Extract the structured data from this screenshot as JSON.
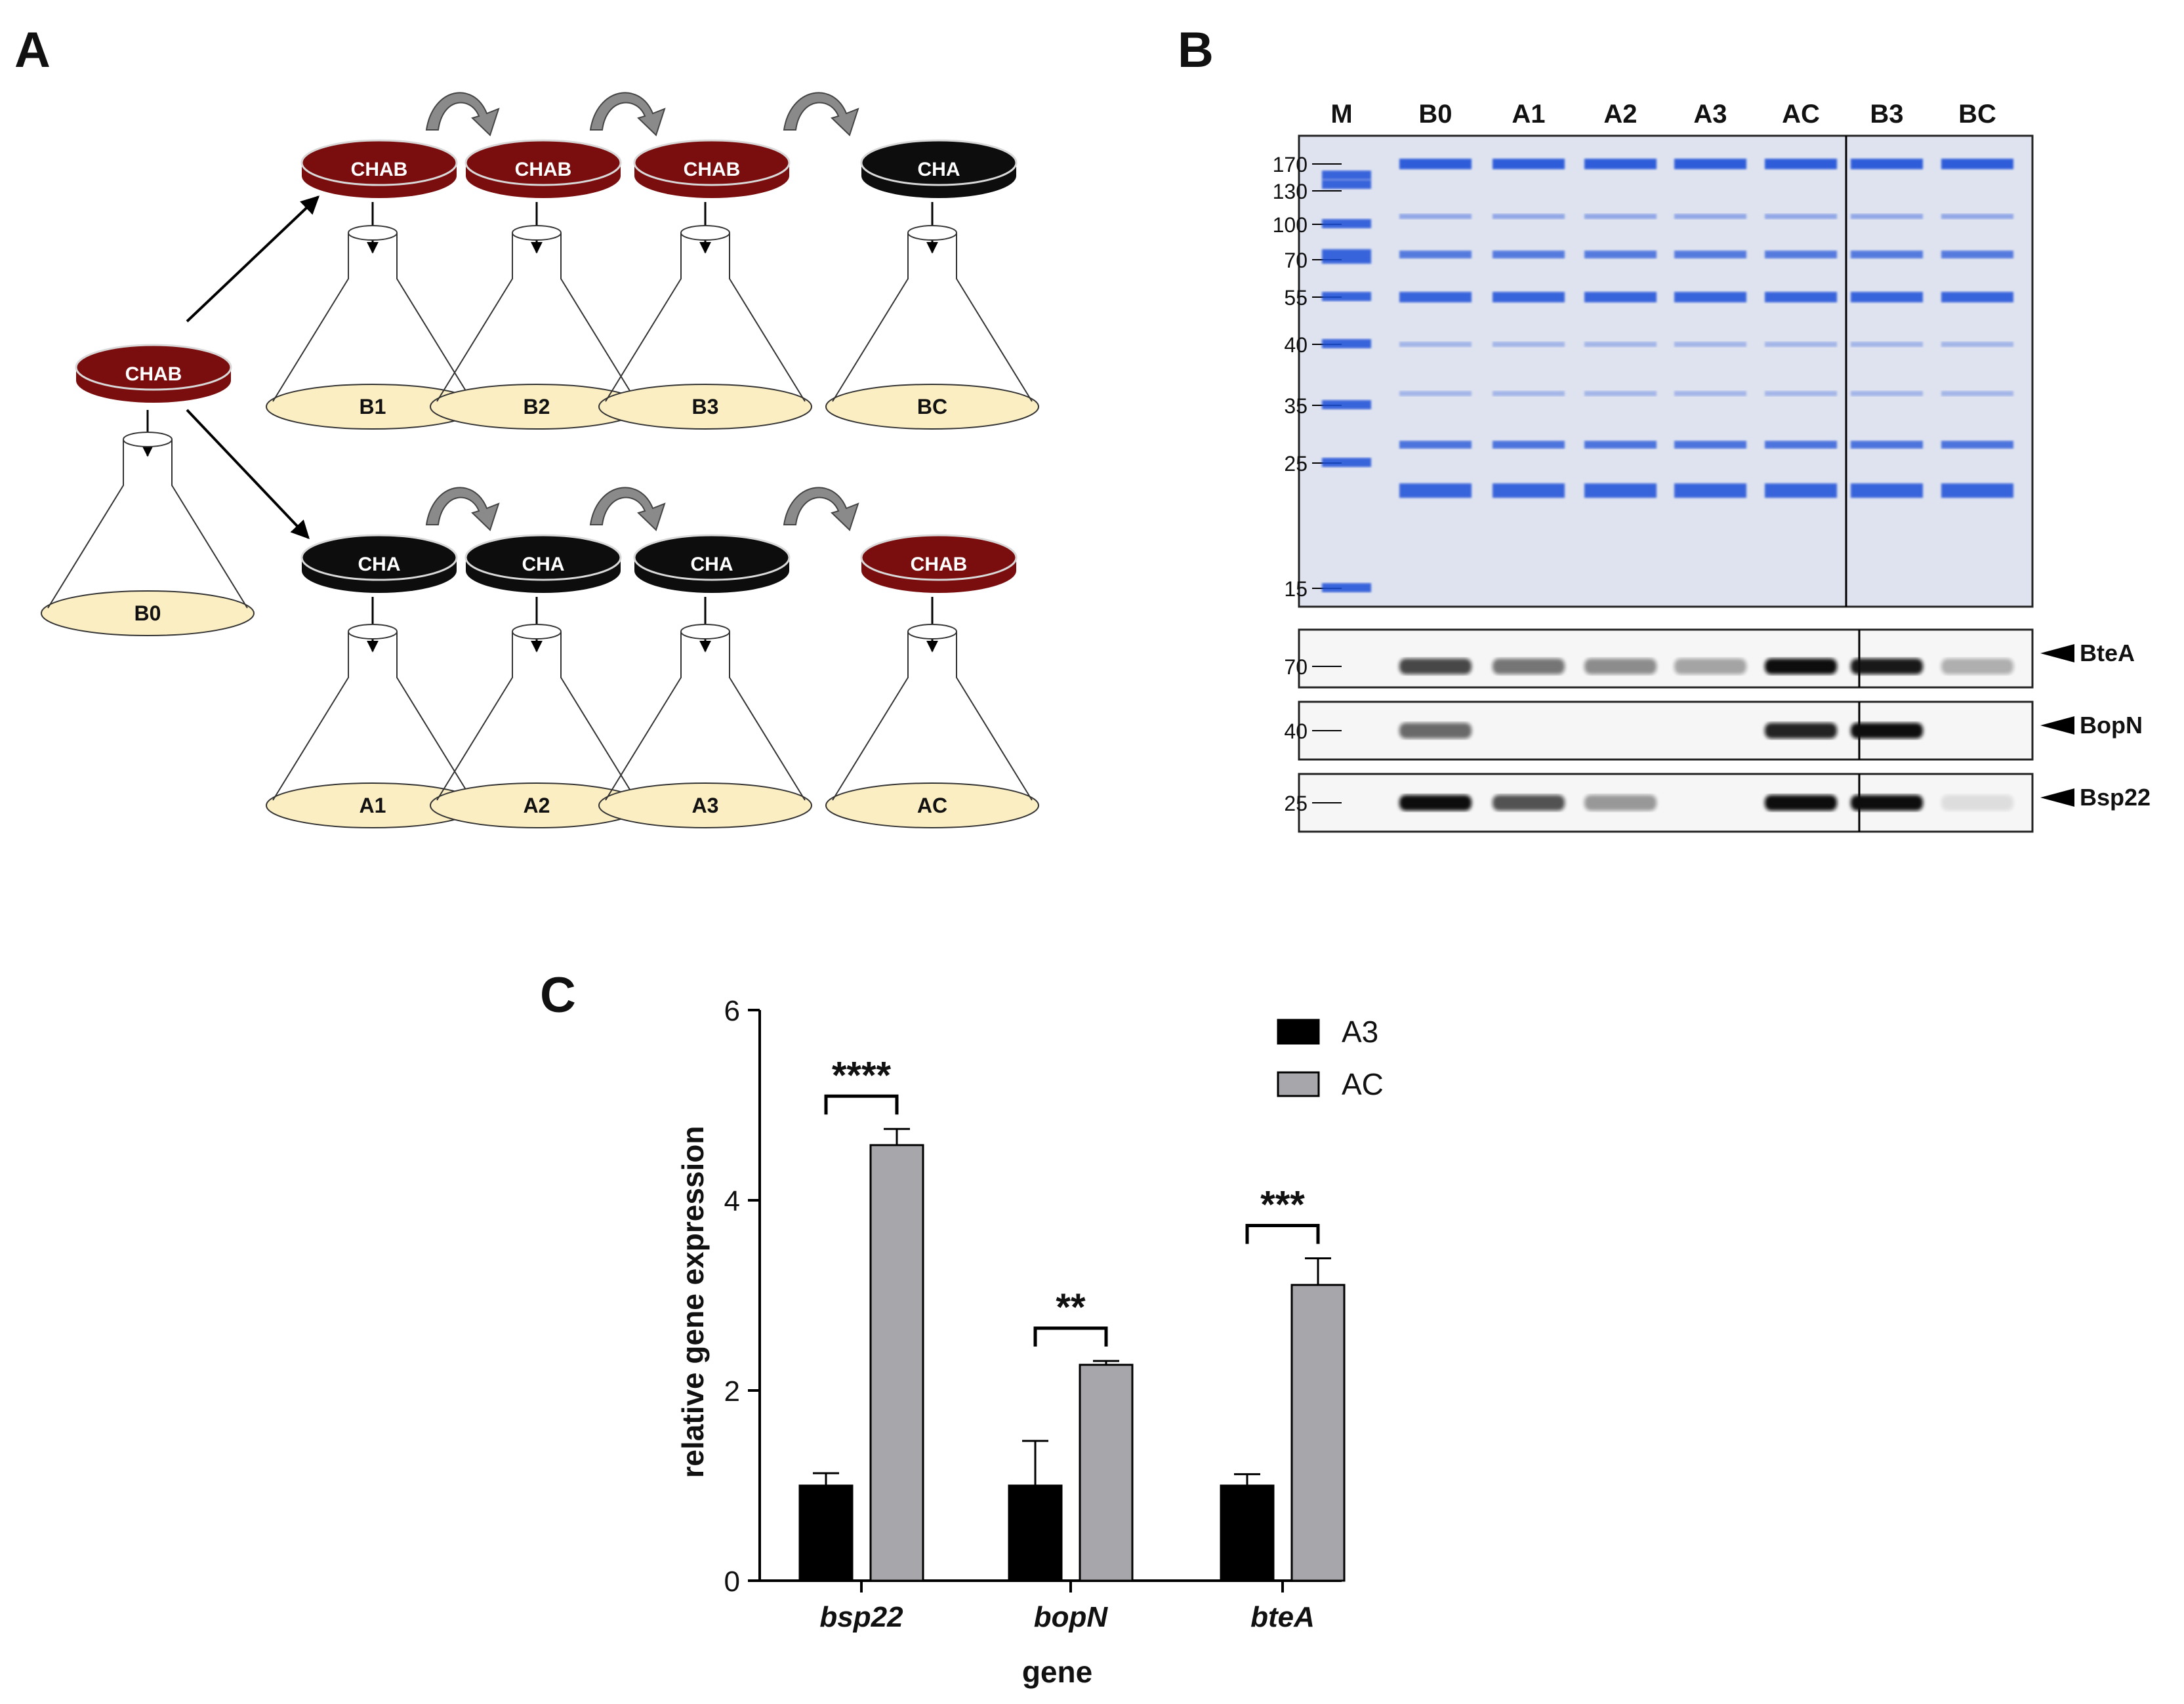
{
  "panel_a": {
    "letter": "A",
    "start_plate": "CHAB",
    "start_flask": "B0",
    "top_row": {
      "plates": [
        "CHAB",
        "CHAB",
        "CHAB",
        "CHA"
      ],
      "flasks": [
        "B1",
        "B2",
        "B3",
        "BC"
      ]
    },
    "bottom_row": {
      "plates": [
        "CHA",
        "CHA",
        "CHA",
        "CHAB"
      ],
      "flasks": [
        "A1",
        "A2",
        "A3",
        "AC"
      ]
    },
    "colors": {
      "chab": "#7a0d0d",
      "cha": "#0d0d0d",
      "medium": "#fbeec2",
      "arrow": "#8a8a8a"
    }
  },
  "panel_b": {
    "letter": "B",
    "lanes": [
      "M",
      "B0",
      "A1",
      "A2",
      "A3",
      "AC",
      "B3",
      "BC"
    ],
    "mw_markers": [
      "170",
      "130",
      "100",
      "70",
      "55",
      "40",
      "35",
      "25",
      "15"
    ],
    "blots": [
      {
        "protein": "BteA",
        "mw": "70",
        "intensities": [
          0.0,
          0.75,
          0.55,
          0.45,
          0.35,
          1.0,
          0.95,
          0.3
        ]
      },
      {
        "protein": "BopN",
        "mw": "40",
        "intensities": [
          0.0,
          0.6,
          0.0,
          0.0,
          0.0,
          0.9,
          1.0,
          0.0
        ]
      },
      {
        "protein": "Bsp22",
        "mw": "25",
        "intensities": [
          0.0,
          1.0,
          0.7,
          0.4,
          0.0,
          1.0,
          1.0,
          0.1
        ]
      }
    ],
    "colors": {
      "gel_bg": "#dfe3ef",
      "band": "#1f4fd8"
    }
  },
  "panel_c": {
    "letter": "C",
    "chart_data": {
      "type": "bar",
      "categories": [
        "bsp22",
        "bopN",
        "bteA"
      ],
      "series": [
        {
          "name": "A3",
          "values": [
            1.0,
            1.0,
            1.0
          ],
          "errors": [
            0.13,
            0.47,
            0.12
          ],
          "color": "#000000"
        },
        {
          "name": "AC",
          "values": [
            4.58,
            2.27,
            3.11
          ],
          "errors": [
            0.17,
            0.04,
            0.28
          ],
          "color": "#a6a6ab"
        }
      ],
      "significance": [
        "****",
        "**",
        "***"
      ],
      "xlabel": "gene",
      "ylabel": "relative gene expression",
      "ylim": [
        0,
        6
      ],
      "yticks": [
        "0",
        "2",
        "4",
        "6"
      ],
      "legend_position": "top-right",
      "grid": false
    }
  }
}
